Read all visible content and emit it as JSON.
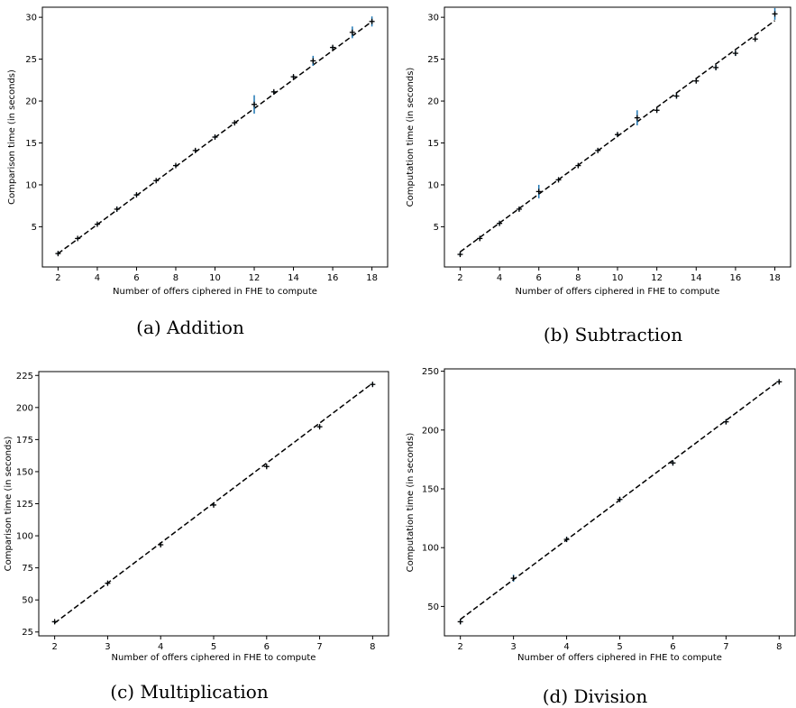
{
  "chart_data": [
    {
      "type": "scatter",
      "caption": "(a) Addition",
      "xlabel": "Number of offers ciphered in FHE to compute",
      "ylabel": "Comparison time (in seconds)",
      "xlim": [
        1.2,
        18.8
      ],
      "ylim": [
        0.2,
        31.2
      ],
      "xticks": [
        2,
        4,
        6,
        8,
        10,
        12,
        14,
        16,
        18
      ],
      "yticks": [
        5,
        10,
        15,
        20,
        25,
        30
      ],
      "x": [
        2,
        3,
        4,
        5,
        6,
        7,
        8,
        9,
        10,
        11,
        12,
        13,
        14,
        15,
        16,
        17,
        18
      ],
      "y": [
        1.8,
        3.6,
        5.3,
        7.1,
        8.8,
        10.5,
        12.3,
        14.1,
        15.7,
        17.4,
        19.6,
        21.1,
        22.9,
        24.8,
        26.4,
        28.2,
        29.5
      ],
      "yerr": [
        0.2,
        0.15,
        0.15,
        0.3,
        0.2,
        0.15,
        0.15,
        0.2,
        0.2,
        0.15,
        1.1,
        0.2,
        0.2,
        0.6,
        0.2,
        0.7,
        0.6
      ],
      "fit": {
        "x": [
          2,
          18
        ],
        "y": [
          1.8,
          29.5
        ],
        "style": "dashed"
      },
      "grid": false
    },
    {
      "type": "scatter",
      "caption": "(b) Subtraction",
      "xlabel": "Number of offers ciphered in FHE to compute",
      "ylabel": "Computation time (in seconds)",
      "xlim": [
        1.2,
        18.8
      ],
      "ylim": [
        0.2,
        31.2
      ],
      "xticks": [
        2,
        4,
        6,
        8,
        10,
        12,
        14,
        16,
        18
      ],
      "yticks": [
        5,
        10,
        15,
        20,
        25,
        30
      ],
      "x": [
        2,
        3,
        4,
        5,
        6,
        7,
        8,
        9,
        10,
        11,
        12,
        13,
        14,
        15,
        16,
        17,
        18
      ],
      "y": [
        1.7,
        3.6,
        5.4,
        7.1,
        9.2,
        10.6,
        12.3,
        14.1,
        16.0,
        18.0,
        18.9,
        20.6,
        22.4,
        24.0,
        25.7,
        27.4,
        30.4
      ],
      "yerr": [
        0.2,
        0.2,
        0.2,
        0.2,
        0.8,
        0.2,
        0.2,
        0.2,
        0.2,
        0.9,
        0.2,
        0.3,
        0.2,
        0.3,
        0.3,
        0.2,
        0.7
      ],
      "fit": {
        "x": [
          2,
          18
        ],
        "y": [
          2.0,
          29.6
        ],
        "style": "dashed"
      },
      "grid": false
    },
    {
      "type": "scatter",
      "caption": "(c) Multiplication",
      "xlabel": "Number of offers ciphered in FHE to compute",
      "ylabel": "Comparison time (in seconds)",
      "xlim": [
        1.7,
        8.3
      ],
      "ylim": [
        22,
        228
      ],
      "xticks": [
        2,
        3,
        4,
        5,
        6,
        7,
        8
      ],
      "yticks": [
        25,
        50,
        75,
        100,
        125,
        150,
        175,
        200,
        225
      ],
      "x": [
        2,
        3,
        4,
        5,
        6,
        7,
        8
      ],
      "y": [
        33,
        63,
        93,
        124,
        154,
        185,
        218
      ],
      "yerr": [
        1.0,
        1.0,
        1.0,
        1.0,
        1.0,
        1.2,
        1.5
      ],
      "fit": {
        "x": [
          2,
          8
        ],
        "y": [
          32,
          219
        ],
        "style": "dashed"
      },
      "grid": false
    },
    {
      "type": "scatter",
      "caption": "(d) Division",
      "xlabel": "Number of offers ciphered in FHE to compute",
      "ylabel": "Computation time (in seconds)",
      "xlim": [
        1.7,
        8.3
      ],
      "ylim": [
        25,
        252
      ],
      "xticks": [
        2,
        3,
        4,
        5,
        6,
        7,
        8
      ],
      "yticks": [
        50,
        100,
        150,
        200,
        250
      ],
      "x": [
        2,
        3,
        4,
        5,
        6,
        7,
        8
      ],
      "y": [
        37,
        74,
        107,
        141,
        172,
        207,
        241
      ],
      "yerr": [
        2.0,
        3.0,
        2.0,
        2.0,
        2.0,
        2.0,
        2.0
      ],
      "fit": {
        "x": [
          2,
          8
        ],
        "y": [
          39,
          242
        ],
        "style": "dashed"
      },
      "grid": false
    }
  ],
  "colors": {
    "point": "#000000",
    "errorbar": "#1f77b4",
    "fit": "#000000",
    "axes": "#000000"
  }
}
